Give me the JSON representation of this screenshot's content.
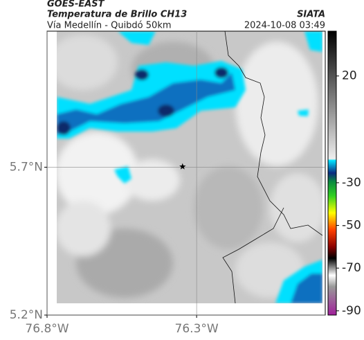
{
  "header": {
    "source": "GOES-EAST",
    "product": "Temperatura de Brillo CH13",
    "agency": "SIATA",
    "route": "Vía Medellín - Quibdó 50km",
    "datetime": "2024-10-08 03:49"
  },
  "map": {
    "xlim": [
      -76.8,
      -75.87
    ],
    "ylim": [
      5.2,
      6.16
    ],
    "xticks": [
      {
        "value": -76.8,
        "label": "76.8°W"
      },
      {
        "value": -76.3,
        "label": "76.3°W"
      }
    ],
    "yticks": [
      {
        "value": 5.2,
        "label": "5.2°N"
      },
      {
        "value": 5.7,
        "label": "5.7°N"
      }
    ],
    "grid": true,
    "marker": {
      "lon": -76.347,
      "lat": 5.702
    }
  },
  "colorbar": {
    "lim": [
      -92,
      41
    ],
    "ticks": [
      20,
      -30,
      -50,
      -70,
      -90
    ]
  }
}
